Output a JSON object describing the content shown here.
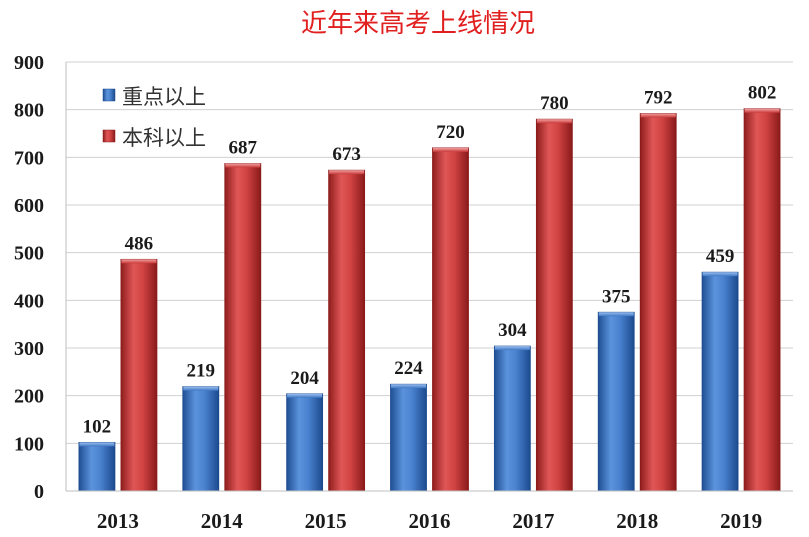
{
  "chart_data": {
    "type": "bar",
    "title": "近年来高考上线情况",
    "categories": [
      "2013",
      "2014",
      "2015",
      "2016",
      "2017",
      "2018",
      "2019"
    ],
    "series": [
      {
        "name": "重点以上",
        "values": [
          102,
          219,
          204,
          224,
          304,
          375,
          459
        ],
        "color": "#3f77c5"
      },
      {
        "name": "本科以上",
        "values": [
          486,
          687,
          673,
          720,
          780,
          792,
          802
        ],
        "color": "#c93a3a"
      }
    ],
    "y_ticks": [
      "0",
      "100",
      "200",
      "300",
      "400",
      "500",
      "600",
      "700",
      "800",
      "900"
    ],
    "ylim": [
      0,
      900
    ],
    "grid": true,
    "legend_position": "top-left",
    "title_color": "#e11f1f"
  }
}
